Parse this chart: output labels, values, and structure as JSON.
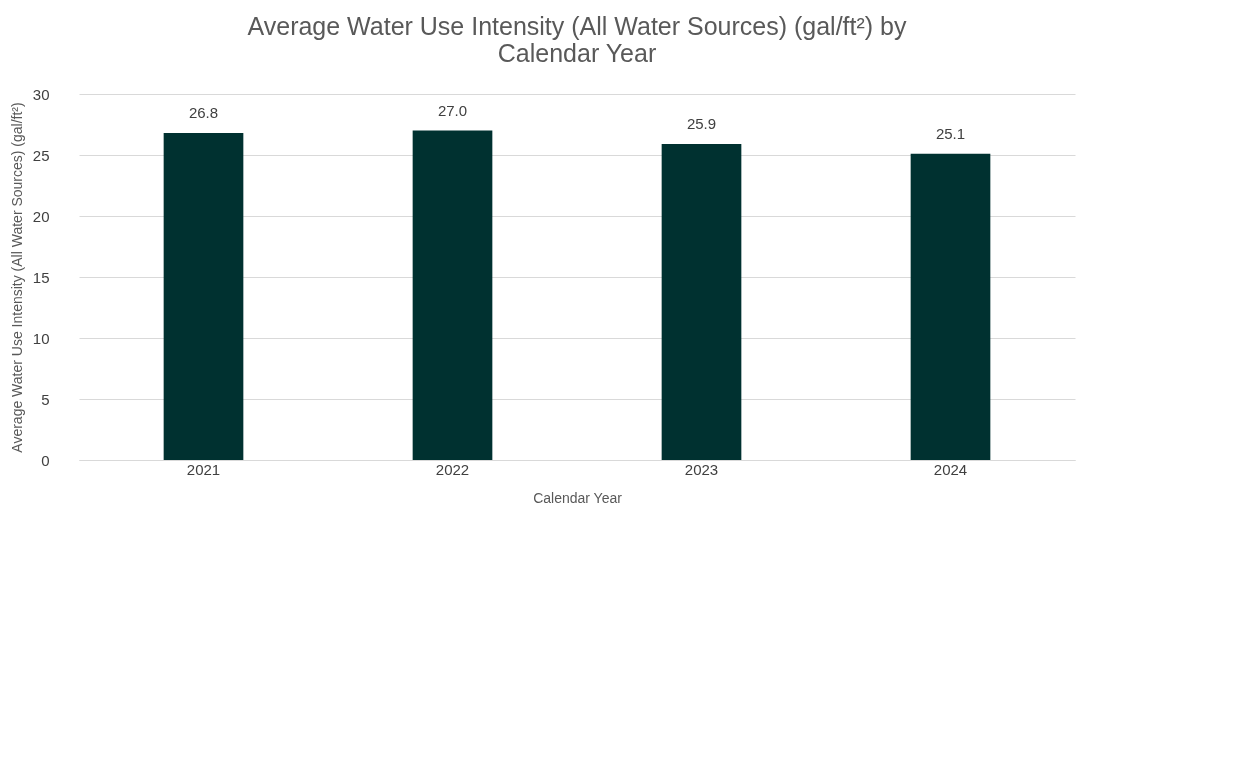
{
  "chart_data": {
    "type": "bar",
    "title": [
      "Average Water Use Intensity (All Water Sources) (gal/ft²) by",
      "Calendar Year"
    ],
    "xlabel": "Calendar Year",
    "ylabel": "Average Water Use Intensity (All Water Sources) (gal/ft²)",
    "categories": [
      "2021",
      "2022",
      "2023",
      "2024"
    ],
    "values": [
      26.8,
      27.0,
      25.9,
      25.1
    ],
    "color": "#003130",
    "ylim": [
      0,
      30
    ],
    "yticks": [
      0,
      5,
      10,
      15,
      20,
      25,
      30
    ],
    "value_labels": [
      "26.8",
      "27.0",
      "25.9",
      "25.1"
    ],
    "grid": "y"
  }
}
